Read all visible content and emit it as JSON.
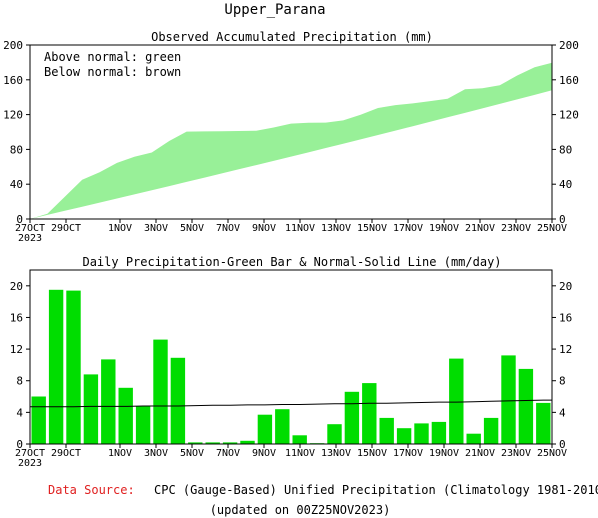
{
  "title": "Upper_Parana",
  "footer": {
    "source_label": "Data Source:",
    "source_text": "CPC (Gauge-Based) Unified Precipitation (Climatology 1981-2010)",
    "updated": "(updated on 00Z25NOV2023)"
  },
  "colors": {
    "above_fill": "#98f098",
    "bar_fill": "#00dd00",
    "normal_line": "#000000",
    "source_label": "#e02020"
  },
  "x_ticks": [
    {
      "day": 0,
      "top": "27OCT",
      "bottom": "2023"
    },
    {
      "day": 2,
      "top": "29OCT",
      "bottom": ""
    },
    {
      "day": 5,
      "top": "1NOV",
      "bottom": ""
    },
    {
      "day": 7,
      "top": "3NOV",
      "bottom": ""
    },
    {
      "day": 9,
      "top": "5NOV",
      "bottom": ""
    },
    {
      "day": 11,
      "top": "7NOV",
      "bottom": ""
    },
    {
      "day": 13,
      "top": "9NOV",
      "bottom": ""
    },
    {
      "day": 15,
      "top": "11NOV",
      "bottom": ""
    },
    {
      "day": 17,
      "top": "13NOV",
      "bottom": ""
    },
    {
      "day": 19,
      "top": "15NOV",
      "bottom": ""
    },
    {
      "day": 21,
      "top": "17NOV",
      "bottom": ""
    },
    {
      "day": 23,
      "top": "19NOV",
      "bottom": ""
    },
    {
      "day": 25,
      "top": "21NOV",
      "bottom": ""
    },
    {
      "day": 27,
      "top": "23NOV",
      "bottom": ""
    },
    {
      "day": 29,
      "top": "25NOV",
      "bottom": ""
    }
  ],
  "chart_data": [
    {
      "type": "area",
      "title": "Observed Accumulated Precipitation (mm)",
      "legend": [
        "Above normal: green",
        "Below normal: brown"
      ],
      "legend_position": "top-left",
      "ylim": [
        0,
        200
      ],
      "y_ticks": [
        0,
        40,
        80,
        120,
        160,
        200
      ],
      "x_start": "27OCT2023",
      "x_end": "25NOV2023",
      "grid": false,
      "series": [
        {
          "name": "Observed",
          "values": [
            6.0,
            25.5,
            45.0,
            53.8,
            64.5,
            71.6,
            76.4,
            89.6,
            100.5,
            100.7,
            100.9,
            101.1,
            101.5,
            105.2,
            109.6,
            110.7,
            110.8,
            113.3,
            119.9,
            127.6,
            130.9,
            132.9,
            135.5,
            138.3,
            149.1,
            150.4,
            153.7,
            164.9,
            174.4,
            179.6
          ]
        },
        {
          "name": "Normal",
          "values": [
            4.7,
            9.4,
            14.1,
            18.9,
            23.6,
            28.3,
            33.1,
            37.8,
            42.6,
            47.4,
            52.3,
            57.1,
            62.0,
            66.8,
            71.7,
            76.6,
            81.6,
            86.5,
            91.5,
            96.6,
            101.6,
            106.7,
            111.8,
            116.9,
            122.0,
            127.1,
            132.3,
            137.5,
            142.7,
            148.0
          ]
        }
      ]
    },
    {
      "type": "bar",
      "title": "Daily Precipitation-Green Bar & Normal-Solid Line (mm/day)",
      "ylim": [
        0,
        22
      ],
      "y_ticks": [
        0,
        4,
        8,
        12,
        16,
        20
      ],
      "x_start": "27OCT2023",
      "x_end": "25NOV2023",
      "grid": false,
      "series": [
        {
          "name": "Daily Precipitation",
          "values": [
            6.0,
            19.5,
            19.4,
            8.8,
            10.7,
            7.1,
            4.8,
            13.2,
            10.9,
            0.2,
            0.2,
            0.2,
            0.4,
            3.7,
            4.4,
            1.1,
            0.1,
            2.5,
            6.6,
            7.7,
            3.3,
            2.0,
            2.6,
            2.8,
            10.8,
            1.3,
            3.3,
            11.2,
            9.5,
            5.2
          ]
        },
        {
          "name": "Normal",
          "values": [
            4.7,
            4.7,
            4.7,
            4.75,
            4.75,
            4.75,
            4.8,
            4.8,
            4.8,
            4.85,
            4.9,
            4.9,
            4.95,
            4.95,
            5.0,
            5.0,
            5.05,
            5.1,
            5.1,
            5.15,
            5.15,
            5.2,
            5.25,
            5.3,
            5.3,
            5.35,
            5.4,
            5.45,
            5.5,
            5.55
          ]
        }
      ]
    }
  ]
}
